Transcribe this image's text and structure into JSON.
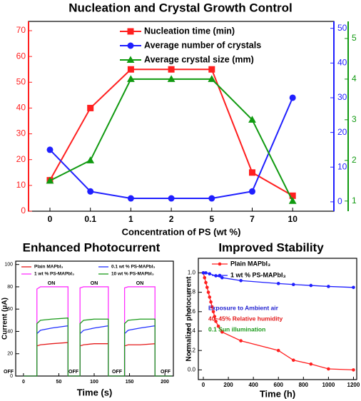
{
  "chart_data": [
    {
      "type": "line",
      "title": "Nucleation and Crystal Growth Control",
      "x_label": "Concentration of PS (wt %)",
      "categories": [
        "0",
        "0.1",
        "1",
        "2",
        "5",
        "7",
        "10"
      ],
      "ylim": [
        0,
        73.6
      ],
      "yticks": [
        0,
        10,
        20,
        30,
        40,
        50,
        60,
        70
      ],
      "y2lim": [
        -2.7,
        52
      ],
      "y2ticks": [
        0,
        10,
        20,
        30,
        40,
        50
      ],
      "y3lim": [
        0.75,
        5.42
      ],
      "y3ticks": [
        1,
        2,
        3,
        4,
        5
      ],
      "series": [
        {
          "name": "Nucleation time (min)",
          "color": "#ff1f1f",
          "marker": "square",
          "axis": "y",
          "values": [
            12,
            40,
            55,
            55,
            55,
            15,
            6
          ]
        },
        {
          "name": "Average number of crystals",
          "color": "#1f1fff",
          "marker": "circle",
          "axis": "y2",
          "values": [
            15,
            3,
            1,
            1,
            1,
            3,
            30
          ]
        },
        {
          "name": "Average crystal size (mm)",
          "color": "#109a10",
          "marker": "triangle",
          "axis": "y3",
          "values": [
            1.5,
            2,
            4,
            4,
            4,
            3,
            1
          ]
        }
      ]
    },
    {
      "type": "line",
      "title": "Enhanced Photocurrent",
      "x_label": "Time (s)",
      "y_label": "Current (μA)",
      "x": [
        0,
        19,
        19,
        24,
        40,
        63,
        63,
        80,
        80,
        85,
        100,
        120,
        120,
        143,
        143,
        148,
        165,
        186,
        186,
        210
      ],
      "xlim": [
        -11,
        212
      ],
      "xticks": [
        0,
        50,
        100,
        150,
        200
      ],
      "ylim": [
        0,
        103
      ],
      "yticks": [
        0,
        20,
        40,
        60,
        80,
        100
      ],
      "annotations": [
        "ON",
        "ON",
        "ON",
        "OFF",
        "OFF",
        "OFF",
        "OFF"
      ],
      "series": [
        {
          "name": "Plain MAPbI₃",
          "color": "#e41a1a",
          "values": [
            0,
            0,
            27,
            28,
            29,
            30,
            0,
            0,
            27,
            28,
            29,
            29,
            0,
            0,
            27,
            28,
            28,
            29,
            0,
            0
          ]
        },
        {
          "name": "0.1 wt % PS-MAPbI₃",
          "color": "#2030ff",
          "values": [
            0,
            0,
            38,
            41,
            43,
            45,
            0,
            0,
            38,
            41,
            43,
            45,
            0,
            0,
            38,
            41,
            43,
            45,
            0,
            0
          ]
        },
        {
          "name": "1 wt % PS-MAPbI₃",
          "color": "#ff30ff",
          "values": [
            0,
            0,
            78,
            80,
            80,
            80,
            0,
            0,
            79,
            80,
            80,
            80,
            0,
            0,
            79,
            80,
            80,
            80,
            0,
            0
          ]
        },
        {
          "name": "10 wt % PS-MAPbI₃",
          "color": "#1a9a1a",
          "values": [
            0,
            0,
            47,
            50,
            51,
            52,
            0,
            0,
            47,
            50,
            51,
            51,
            0,
            0,
            47,
            50,
            51,
            51,
            0,
            0
          ]
        }
      ]
    },
    {
      "type": "line",
      "title": "Improved Stability",
      "x_label": "Time (h)",
      "y_label": "Normalized photocurrent",
      "xlim": [
        -40,
        1226
      ],
      "xticks": [
        0,
        200,
        400,
        600,
        800,
        1000,
        1200
      ],
      "ylim": [
        -0.1,
        1.15
      ],
      "yticks": [
        {
          "value": 0,
          "label": "0.0"
        },
        0.2,
        0.4,
        0.6,
        0.8,
        {
          "value": 1,
          "label": "1.0"
        }
      ],
      "annotations": [
        {
          "text": "Exposure to Ambient air",
          "color": "#2020d0"
        },
        {
          "text": "40~45% Relative humidity",
          "color": "#e41a1a"
        },
        {
          "text": "0.1 Sun illumination",
          "color": "#1a9a1a"
        }
      ],
      "series": [
        {
          "name": "Plain MAPbI₃",
          "color": "#ff1f1f",
          "marker": "circle",
          "x": [
            0,
            10,
            20,
            30,
            40,
            50,
            60,
            70,
            80,
            90,
            100,
            120,
            150,
            300,
            600,
            720,
            860,
            1000,
            1200
          ],
          "values": [
            1.0,
            0.95,
            0.9,
            0.85,
            0.8,
            0.75,
            0.7,
            0.65,
            0.6,
            0.55,
            0.5,
            0.45,
            0.39,
            0.3,
            0.2,
            0.1,
            0.06,
            0.01,
            0.0
          ]
        },
        {
          "name": "1 wt % PS-MAPbI₃",
          "color": "#1f1fff",
          "marker": "circle",
          "x": [
            0,
            20,
            50,
            100,
            150,
            300,
            600,
            720,
            860,
            1000,
            1200
          ],
          "values": [
            1.0,
            1.0,
            0.99,
            0.97,
            0.95,
            0.92,
            0.89,
            0.88,
            0.87,
            0.86,
            0.85
          ]
        }
      ]
    }
  ]
}
